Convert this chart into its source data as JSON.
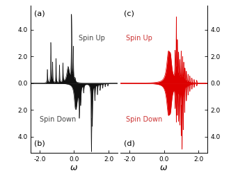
{
  "xlim": [
    -2.5,
    2.5
  ],
  "ylim": [
    -5.2,
    5.8
  ],
  "xticks": [
    -2.0,
    0.0,
    2.0
  ],
  "xlabel": "ω",
  "color_left": "#111111",
  "color_right": "#dd0000",
  "label_a": "(a)",
  "label_b": "(b)",
  "label_c": "(c)",
  "label_d": "(d)",
  "spin_up": "Spin Up",
  "spin_down": "Spin Down",
  "fig_width": 3.42,
  "fig_height": 2.62,
  "dpi": 100
}
